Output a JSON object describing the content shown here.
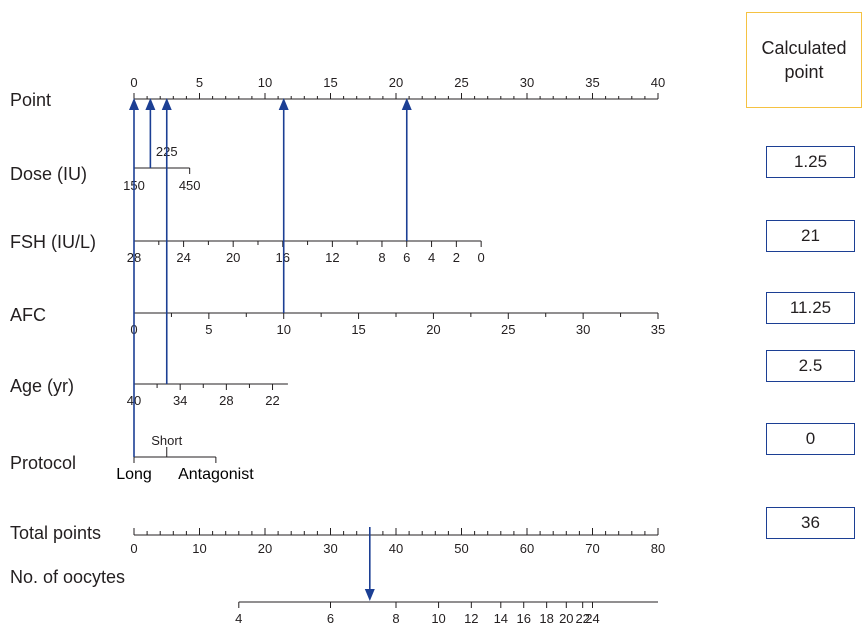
{
  "colors": {
    "guide": "#1c3f94",
    "header_border": "#f5c242",
    "box_border": "#1c3f94",
    "text": "#231f20"
  },
  "calculated_header": "Calculated\npoint",
  "calculated_values": [
    "1.25",
    "21",
    "11.25",
    "2.5",
    "0",
    "36"
  ],
  "chart_data": {
    "type": "nomogram",
    "rows": [
      {
        "label": "Point",
        "range": [
          0,
          40
        ],
        "major_ticks": [
          "0",
          "5",
          "10",
          "15",
          "20",
          "25",
          "30",
          "35",
          "40"
        ],
        "tick_labels_position": "above"
      },
      {
        "label": "Dose (IU)",
        "levels": [
          {
            "value": "150",
            "points": 0,
            "label_position": "below"
          },
          {
            "value": "225",
            "points": 2.5,
            "label_position": "above"
          },
          {
            "value": "450",
            "points": 4.25,
            "label_position": "below"
          }
        ]
      },
      {
        "label": "FSH (IU/L)",
        "scale": [
          28,
          0
        ],
        "points_range": [
          0,
          26.5
        ],
        "tick_labels": [
          "28",
          "24",
          "20",
          "16",
          "12",
          "8",
          "6",
          "4",
          "2",
          "0"
        ],
        "label_values": [
          28,
          24,
          20,
          16,
          12,
          8,
          6,
          4,
          2,
          0
        ]
      },
      {
        "label": "AFC",
        "scale": [
          0,
          35
        ],
        "points_range": [
          0,
          40
        ],
        "tick_labels": [
          "0",
          "5",
          "10",
          "15",
          "20",
          "25",
          "30",
          "35"
        ],
        "label_values": [
          0,
          5,
          10,
          15,
          20,
          25,
          30,
          35
        ]
      },
      {
        "label": "Age (yr)",
        "scale": [
          40,
          20
        ],
        "points_range": [
          0,
          11.75
        ],
        "tick_labels": [
          "40",
          "34",
          "28",
          "22"
        ],
        "label_values": [
          40,
          34,
          28,
          22
        ]
      },
      {
        "label": "Protocol",
        "levels": [
          {
            "value": "Long",
            "points": 0,
            "label_position": "below"
          },
          {
            "value": "Short",
            "points": 2.5,
            "label_position": "above"
          },
          {
            "value": "Antagonist",
            "points": 6.25,
            "label_position": "below"
          }
        ]
      },
      {
        "label": "Total points",
        "range": [
          0,
          80
        ],
        "major_ticks": [
          "0",
          "10",
          "20",
          "30",
          "40",
          "50",
          "60",
          "70",
          "80"
        ],
        "tick_labels_position": "below"
      },
      {
        "label": "No. of oocytes",
        "total_points_range": [
          16,
          80
        ],
        "tick_labels": [
          "4",
          "6",
          "8",
          "10",
          "12",
          "14",
          "16",
          "18",
          "20",
          "22",
          "24"
        ],
        "tick_points": [
          16,
          30,
          40,
          46.5,
          51.5,
          56,
          59.5,
          63,
          66,
          68.5,
          70
        ]
      }
    ],
    "example": {
      "dose_points": 1.25,
      "fsh_value": 6,
      "fsh_points": 21,
      "afc_value": 10,
      "afc_points": 11.25,
      "age_points": 2.5,
      "protocol": "Long",
      "protocol_points": 0,
      "total_points": 36,
      "predicted_oocytes": 7.5
    }
  }
}
